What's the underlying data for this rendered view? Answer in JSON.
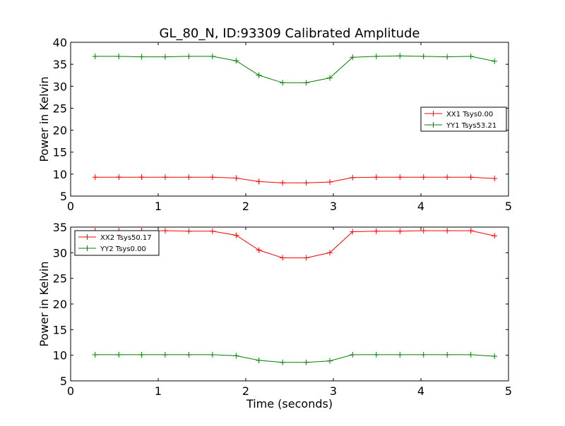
{
  "title": "GL_80_N, ID:93309 Calibrated Amplitude",
  "chart_data": [
    {
      "type": "line",
      "ylabel": "Power in Kelvin",
      "xlabel": "",
      "xlim": [
        0,
        5
      ],
      "ylim": [
        5,
        40
      ],
      "xticks": [
        0,
        1,
        2,
        3,
        4,
        5
      ],
      "yticks": [
        5,
        10,
        15,
        20,
        25,
        30,
        35,
        40
      ],
      "grid": false,
      "legend_position": "center-right",
      "x": [
        0.28,
        0.55,
        0.81,
        1.08,
        1.35,
        1.62,
        1.89,
        2.15,
        2.42,
        2.69,
        2.96,
        3.22,
        3.49,
        3.76,
        4.03,
        4.3,
        4.57,
        4.84
      ],
      "series": [
        {
          "name": "XX1 Tsys0.00",
          "color": "#ff0000",
          "marker": "plus",
          "values": [
            9.3,
            9.3,
            9.3,
            9.3,
            9.3,
            9.3,
            9.1,
            8.3,
            8.0,
            8.0,
            8.2,
            9.2,
            9.3,
            9.3,
            9.3,
            9.3,
            9.3,
            9.0
          ]
        },
        {
          "name": "YY1 Tsys53.21",
          "color": "#008000",
          "marker": "plus",
          "values": [
            36.8,
            36.8,
            36.7,
            36.7,
            36.8,
            36.8,
            35.8,
            32.5,
            30.8,
            30.8,
            31.9,
            36.6,
            36.8,
            36.9,
            36.8,
            36.7,
            36.8,
            35.7
          ]
        }
      ]
    },
    {
      "type": "line",
      "ylabel": "Power in Kelvin",
      "xlabel": "Time (seconds)",
      "xlim": [
        0,
        5
      ],
      "ylim": [
        5,
        35
      ],
      "xticks": [
        0,
        1,
        2,
        3,
        4,
        5
      ],
      "yticks": [
        5,
        10,
        15,
        20,
        25,
        30,
        35
      ],
      "grid": false,
      "legend_position": "top-left",
      "x": [
        0.28,
        0.55,
        0.81,
        1.08,
        1.35,
        1.62,
        1.89,
        2.15,
        2.42,
        2.69,
        2.96,
        3.22,
        3.49,
        3.76,
        4.03,
        4.3,
        4.57,
        4.84
      ],
      "series": [
        {
          "name": "XX2 Tsys50.17",
          "color": "#ff0000",
          "marker": "plus",
          "values": [
            34.3,
            34.3,
            34.3,
            34.3,
            34.2,
            34.2,
            33.4,
            30.5,
            29.0,
            29.0,
            30.0,
            34.1,
            34.2,
            34.2,
            34.3,
            34.3,
            34.3,
            33.3
          ]
        },
        {
          "name": "YY2 Tsys0.00",
          "color": "#008000",
          "marker": "plus",
          "values": [
            10.1,
            10.1,
            10.1,
            10.1,
            10.1,
            10.1,
            9.9,
            9.0,
            8.6,
            8.6,
            8.9,
            10.1,
            10.1,
            10.1,
            10.1,
            10.1,
            10.1,
            9.8
          ]
        }
      ]
    }
  ]
}
